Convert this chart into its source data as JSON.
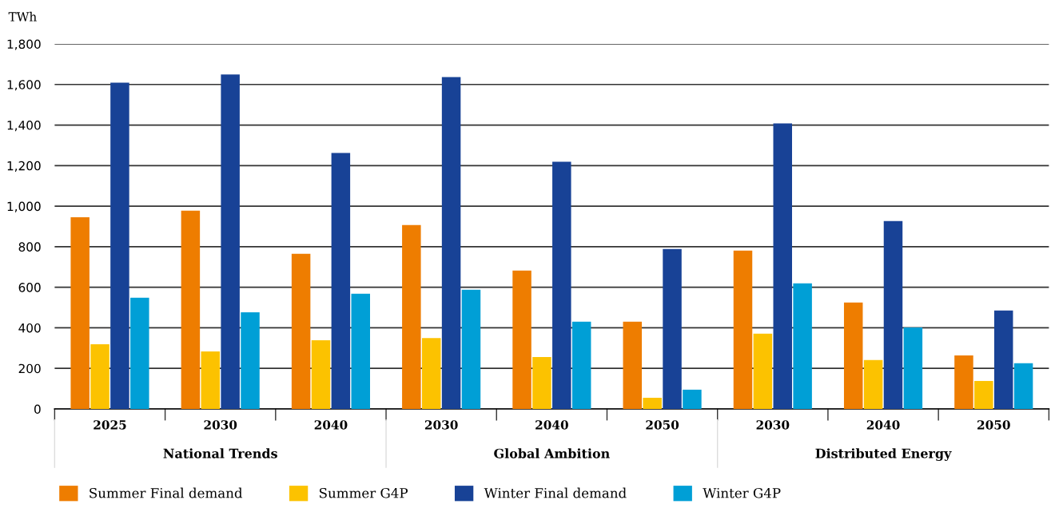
{
  "chart_data": {
    "type": "bar",
    "ylabel": "TWh",
    "categories": [
      "2025",
      "2030",
      "2040",
      "2030",
      "2040",
      "2050",
      "2030",
      "2040",
      "2050"
    ],
    "annotations": [
      "National Trends",
      "Global Ambition",
      "Distributed Energy"
    ],
    "series": [
      {
        "name": "Summer Final demand",
        "color": "#ee7d00",
        "values": [
          945,
          978,
          765,
          907,
          682,
          430,
          781,
          525,
          264
        ]
      },
      {
        "name": "Summer G4P",
        "color": "#fcc200",
        "values": [
          319,
          284,
          339,
          350,
          256,
          55,
          371,
          241,
          138
        ]
      },
      {
        "name": "Winter Final demand",
        "color": "#184296",
        "values": [
          1609,
          1649,
          1262,
          1637,
          1219,
          789,
          1408,
          927,
          485
        ]
      },
      {
        "name": "Winter G4P",
        "color": "#009fd6",
        "values": [
          548,
          477,
          568,
          588,
          430,
          95,
          619,
          402,
          225
        ]
      }
    ],
    "ylim": [
      0,
      1800
    ],
    "yticks": [
      0,
      200,
      400,
      600,
      800,
      {
        "value": 1000,
        "label": "1,000"
      },
      {
        "value": 1200,
        "label": "1,200"
      },
      {
        "value": 1400,
        "label": "1,400"
      },
      {
        "value": 1600,
        "label": "1,600"
      },
      {
        "value": 1800,
        "label": "1,800"
      }
    ],
    "grid": "y",
    "legend": "bottom"
  }
}
